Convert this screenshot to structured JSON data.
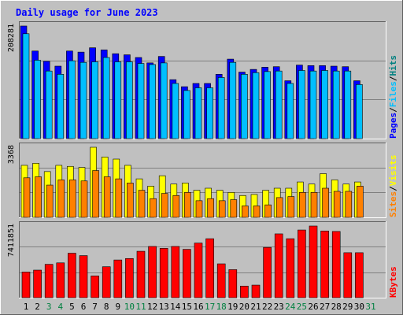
{
  "title": "Daily usage for June 2023",
  "colors": {
    "background": "#c0c0c0",
    "title": "#0000ff",
    "pages": "#0000ff",
    "files": "#00bfff",
    "hits": "#008080",
    "visits": "#ffff00",
    "sites": "#ff8000",
    "kbytes": "#ff0000",
    "weekend_label": "#008040",
    "weekday_label": "#000000"
  },
  "days": [
    "1",
    "2",
    "3",
    "4",
    "5",
    "6",
    "7",
    "8",
    "9",
    "10",
    "11",
    "12",
    "13",
    "14",
    "15",
    "16",
    "17",
    "18",
    "19",
    "20",
    "21",
    "22",
    "23",
    "24",
    "25",
    "26",
    "27",
    "28",
    "29",
    "30",
    "31"
  ],
  "weekend_days": [
    "3",
    "4",
    "10",
    "11",
    "17",
    "18",
    "24",
    "25",
    "31"
  ],
  "chart_data": [
    {
      "type": "bar",
      "panel": "hits",
      "ymax_label": "208281",
      "ylim": [
        0,
        208281
      ],
      "legend": [
        {
          "name": "Pages",
          "color": "#0000ff"
        },
        {
          "name": "Files",
          "color": "#00bfff"
        },
        {
          "name": "Hits",
          "color": "#008080"
        }
      ],
      "series": [
        {
          "name": "Hits",
          "values": [
            208281,
            162000,
            143000,
            134000,
            162000,
            160000,
            168000,
            164000,
            157000,
            155000,
            150000,
            140000,
            152000,
            109000,
            96000,
            102000,
            102000,
            119000,
            147000,
            123000,
            128000,
            132000,
            133000,
            107000,
            136000,
            135000,
            135000,
            134000,
            133000,
            107000,
            0
          ]
        },
        {
          "name": "Files",
          "values": [
            194000,
            145000,
            125000,
            119000,
            144000,
            141000,
            142000,
            150000,
            142000,
            142000,
            139000,
            137000,
            140000,
            102000,
            89000,
            94000,
            94000,
            113000,
            141000,
            119000,
            122000,
            124000,
            125000,
            102000,
            126000,
            125000,
            126000,
            125000,
            125000,
            100000,
            0
          ]
        },
        {
          "name": "Pages",
          "values": [
            208281,
            162000,
            143000,
            134000,
            162000,
            160000,
            168000,
            164000,
            157000,
            155000,
            150000,
            140000,
            152000,
            109000,
            96000,
            102000,
            102000,
            119000,
            147000,
            123000,
            128000,
            132000,
            133000,
            107000,
            136000,
            135000,
            135000,
            134000,
            133000,
            107000,
            0
          ]
        }
      ]
    },
    {
      "type": "bar",
      "panel": "visits",
      "ymax_label": "3368",
      "ylim": [
        0,
        3368
      ],
      "legend": [
        {
          "name": "Sites",
          "color": "#ff8000"
        },
        {
          "name": "Visits",
          "color": "#ffff00"
        }
      ],
      "series": [
        {
          "name": "Visits",
          "values": [
            2500,
            2600,
            2200,
            2500,
            2450,
            2400,
            3368,
            2900,
            2800,
            2500,
            1850,
            1500,
            2000,
            1600,
            1650,
            1300,
            1400,
            1300,
            1200,
            1050,
            1100,
            1300,
            1400,
            1400,
            1700,
            1600,
            2100,
            1800,
            1600,
            1700,
            0
          ]
        },
        {
          "name": "Sites",
          "values": [
            1900,
            1950,
            1550,
            1800,
            1800,
            1750,
            2250,
            1950,
            1850,
            1650,
            1300,
            900,
            1150,
            1050,
            1200,
            800,
            900,
            800,
            850,
            550,
            550,
            600,
            950,
            1000,
            1200,
            1200,
            1400,
            1250,
            1250,
            1500,
            0
          ]
        }
      ]
    },
    {
      "type": "bar",
      "panel": "kbytes",
      "ymax_label": "7411851",
      "ylim": [
        0,
        7411851
      ],
      "legend": [
        {
          "name": "KBytes",
          "color": "#ff0000"
        }
      ],
      "series": [
        {
          "name": "KBytes",
          "values": [
            2650000,
            2850000,
            3450000,
            3600000,
            4600000,
            4350000,
            2250000,
            3200000,
            3900000,
            4050000,
            4800000,
            5300000,
            5100000,
            5300000,
            5000000,
            5650000,
            6100000,
            3500000,
            2900000,
            1200000,
            1300000,
            5200000,
            6600000,
            6100000,
            7000000,
            7411851,
            6900000,
            6850000,
            4650000,
            4650000,
            0
          ]
        }
      ]
    }
  ]
}
